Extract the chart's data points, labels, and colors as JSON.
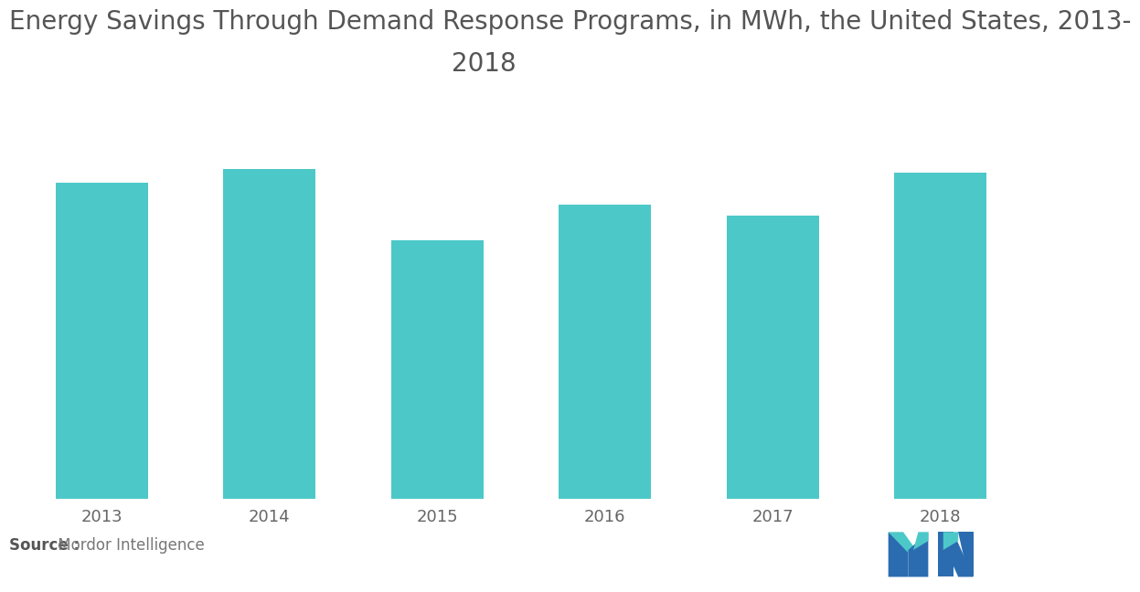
{
  "title_line1": "Energy Savings Through Demand Response Programs, in MWh, the United States, 2013-",
  "title_line2": "2018",
  "categories": [
    "2013",
    "2014",
    "2015",
    "2016",
    "2017",
    "2018"
  ],
  "values": [
    88,
    92,
    72,
    82,
    79,
    91
  ],
  "bar_color": "#4DC8C8",
  "background_color": "#ffffff",
  "title_fontsize": 20,
  "tick_fontsize": 13,
  "source_bold": "Source :",
  "source_regular": " Mordor Intelligence",
  "ylim": [
    0,
    100
  ],
  "bar_width": 0.55,
  "title_color": "#555555",
  "tick_color": "#666666"
}
